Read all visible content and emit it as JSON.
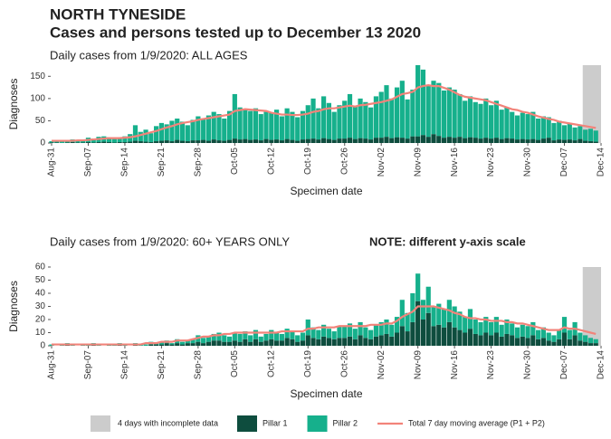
{
  "title": "NORTH TYNESIDE",
  "subtitle": "Cases and persons tested up to December 13 2020",
  "chart_data": [
    {
      "type": "bar",
      "stacked": true,
      "title": "Daily cases from 1/9/2020: ALL AGES",
      "ylabel": "Diagnoses",
      "xlabel": "Specimen date",
      "ylim": [
        0,
        175
      ],
      "yticks": [
        0,
        50,
        100,
        150
      ],
      "shade": {
        "days": 4,
        "color": "#cccccc"
      },
      "categories": [
        "Aug-31",
        null,
        null,
        null,
        null,
        null,
        null,
        "Sep-07",
        null,
        null,
        null,
        null,
        null,
        null,
        "Sep-14",
        null,
        null,
        null,
        null,
        null,
        null,
        "Sep-21",
        null,
        null,
        null,
        null,
        null,
        null,
        "Sep-28",
        null,
        null,
        null,
        null,
        null,
        null,
        "Oct-05",
        null,
        null,
        null,
        null,
        null,
        null,
        "Oct-12",
        null,
        null,
        null,
        null,
        null,
        null,
        "Oct-19",
        null,
        null,
        null,
        null,
        null,
        null,
        "Oct-26",
        null,
        null,
        null,
        null,
        null,
        null,
        "Nov-02",
        null,
        null,
        null,
        null,
        null,
        null,
        "Nov-09",
        null,
        null,
        null,
        null,
        null,
        null,
        "Nov-16",
        null,
        null,
        null,
        null,
        null,
        null,
        "Nov-23",
        null,
        null,
        null,
        null,
        null,
        null,
        "Nov-30",
        null,
        null,
        null,
        null,
        null,
        null,
        "Dec-07",
        null,
        null,
        null,
        null,
        null,
        null,
        "Dec-14"
      ],
      "series": [
        {
          "name": "Pillar 1",
          "color": "#0e4d3e",
          "values": [
            1,
            1,
            0,
            1,
            2,
            1,
            1,
            2,
            1,
            2,
            3,
            2,
            1,
            2,
            2,
            3,
            5,
            4,
            3,
            2,
            4,
            5,
            6,
            4,
            7,
            5,
            4,
            6,
            6,
            7,
            5,
            8,
            6,
            5,
            7,
            10,
            8,
            9,
            7,
            8,
            6,
            9,
            7,
            8,
            6,
            9,
            7,
            5,
            8,
            9,
            10,
            8,
            11,
            9,
            7,
            10,
            10,
            12,
            9,
            11,
            10,
            8,
            12,
            12,
            14,
            11,
            13,
            12,
            10,
            15,
            15,
            18,
            14,
            20,
            16,
            12,
            14,
            12,
            14,
            11,
            13,
            12,
            10,
            12,
            10,
            12,
            9,
            11,
            10,
            8,
            9,
            8,
            9,
            7,
            10,
            12,
            6,
            8,
            7,
            8,
            6,
            9,
            5,
            4,
            3,
            null
          ]
        },
        {
          "name": "Pillar 2",
          "color": "#16b08c",
          "values": [
            3,
            4,
            3,
            5,
            6,
            4,
            5,
            10,
            9,
            12,
            12,
            11,
            8,
            9,
            13,
            17,
            35,
            21,
            27,
            20,
            34,
            40,
            36,
            46,
            48,
            43,
            36,
            46,
            54,
            48,
            57,
            62,
            59,
            50,
            65,
            100,
            72,
            66,
            65,
            70,
            59,
            61,
            61,
            67,
            54,
            69,
            63,
            53,
            64,
            76,
            90,
            70,
            94,
            81,
            63,
            75,
            85,
            98,
            73,
            89,
            82,
            72,
            93,
            103,
            116,
            89,
            112,
            128,
            88,
            105,
            160,
            147,
            116,
            120,
            119,
            106,
            111,
            108,
            96,
            84,
            92,
            80,
            78,
            88,
            75,
            83,
            66,
            69,
            60,
            54,
            59,
            57,
            61,
            48,
            50,
            46,
            39,
            42,
            33,
            37,
            29,
            29,
            25,
            28,
            25,
            null
          ]
        },
        {
          "name": "Total 7 day moving average (P1 + P2)",
          "type": "line",
          "color": "#f2837a",
          "values": [
            5,
            5,
            5,
            5,
            5,
            6,
            6,
            7,
            8,
            9,
            10,
            11,
            11,
            11,
            12,
            13,
            15,
            18,
            21,
            24,
            27,
            31,
            35,
            38,
            42,
            45,
            47,
            49,
            52,
            54,
            56,
            58,
            60,
            62,
            64,
            72,
            74,
            76,
            75,
            74,
            73,
            72,
            68,
            66,
            64,
            64,
            63,
            63,
            64,
            66,
            70,
            72,
            76,
            78,
            78,
            80,
            82,
            84,
            82,
            85,
            86,
            88,
            90,
            92,
            95,
            98,
            104,
            110,
            112,
            115,
            125,
            128,
            130,
            128,
            128,
            124,
            120,
            114,
            108,
            104,
            102,
            100,
            98,
            96,
            92,
            88,
            84,
            80,
            76,
            74,
            70,
            68,
            64,
            60,
            57,
            54,
            52,
            48,
            46,
            44,
            42,
            40,
            38,
            36,
            34,
            null
          ]
        }
      ]
    },
    {
      "type": "bar",
      "stacked": true,
      "title": "Daily cases from 1/9/2020: 60+ YEARS ONLY",
      "note": "NOTE: different y-axis scale",
      "ylabel": "Diagnoses",
      "xlabel": "Specimen date",
      "ylim": [
        0,
        60
      ],
      "yticks": [
        0,
        10,
        20,
        30,
        40,
        50,
        60
      ],
      "shade": {
        "label": "4 days with incomplete data",
        "days": 4,
        "color": "#cccccc"
      },
      "categories": [
        "Aug-31",
        null,
        null,
        null,
        null,
        null,
        null,
        "Sep-07",
        null,
        null,
        null,
        null,
        null,
        null,
        "Sep-14",
        null,
        null,
        null,
        null,
        null,
        null,
        "Sep-21",
        null,
        null,
        null,
        null,
        null,
        null,
        "Sep-28",
        null,
        null,
        null,
        null,
        null,
        null,
        "Oct-05",
        null,
        null,
        null,
        null,
        null,
        null,
        "Oct-12",
        null,
        null,
        null,
        null,
        null,
        null,
        "Oct-19",
        null,
        null,
        null,
        null,
        null,
        null,
        "Oct-26",
        null,
        null,
        null,
        null,
        null,
        null,
        "Nov-02",
        null,
        null,
        null,
        null,
        null,
        null,
        "Nov-09",
        null,
        null,
        null,
        null,
        null,
        null,
        "Nov-16",
        null,
        null,
        null,
        null,
        null,
        null,
        "Nov-23",
        null,
        null,
        null,
        null,
        null,
        null,
        "Nov-30",
        null,
        null,
        null,
        null,
        null,
        null,
        "Dec-07",
        null,
        null,
        null,
        null,
        null,
        null,
        "Dec-14"
      ],
      "series": [
        {
          "name": "Pillar 1",
          "color": "#0e4d3e",
          "values": [
            0,
            0,
            0,
            1,
            0,
            0,
            0,
            0,
            1,
            0,
            0,
            0,
            0,
            1,
            0,
            0,
            1,
            0,
            0,
            1,
            1,
            1,
            2,
            1,
            2,
            1,
            2,
            2,
            3,
            2,
            3,
            4,
            4,
            3,
            3,
            4,
            3,
            5,
            3,
            5,
            3,
            4,
            5,
            4,
            4,
            6,
            5,
            3,
            4,
            8,
            6,
            5,
            7,
            6,
            5,
            6,
            6,
            7,
            5,
            8,
            6,
            5,
            7,
            8,
            9,
            7,
            10,
            15,
            11,
            18,
            34,
            20,
            25,
            15,
            16,
            14,
            18,
            14,
            12,
            10,
            13,
            9,
            8,
            10,
            8,
            10,
            7,
            9,
            8,
            6,
            7,
            6,
            8,
            5,
            6,
            4,
            3,
            5,
            10,
            5,
            8,
            4,
            3,
            2,
            2,
            null
          ]
        },
        {
          "name": "Pillar 2",
          "color": "#16b08c",
          "values": [
            1,
            0,
            1,
            1,
            1,
            0,
            1,
            1,
            1,
            1,
            0,
            1,
            1,
            1,
            1,
            0,
            1,
            1,
            1,
            2,
            1,
            2,
            2,
            1,
            3,
            2,
            2,
            3,
            5,
            4,
            4,
            5,
            6,
            5,
            4,
            6,
            6,
            6,
            5,
            7,
            4,
            5,
            7,
            6,
            5,
            7,
            6,
            5,
            6,
            12,
            8,
            7,
            9,
            7,
            6,
            9,
            9,
            10,
            8,
            10,
            8,
            7,
            9,
            10,
            11,
            9,
            12,
            20,
            14,
            22,
            21,
            15,
            20,
            15,
            16,
            14,
            17,
            16,
            14,
            12,
            15,
            11,
            10,
            12,
            10,
            12,
            9,
            11,
            9,
            8,
            9,
            9,
            10,
            7,
            8,
            6,
            5,
            7,
            12,
            7,
            10,
            6,
            5,
            4,
            3,
            null
          ]
        },
        {
          "name": "Total 7 day moving average (P1 + P2)",
          "type": "line",
          "color": "#f2837a",
          "values": [
            1,
            1,
            1,
            1,
            1,
            1,
            1,
            1,
            1,
            1,
            1,
            1,
            1,
            1,
            1,
            1,
            1,
            1,
            2,
            2,
            2,
            3,
            3,
            3,
            4,
            4,
            4,
            5,
            6,
            7,
            7,
            8,
            8,
            9,
            9,
            10,
            10,
            10,
            10,
            10,
            10,
            10,
            10,
            10,
            11,
            11,
            11,
            11,
            11,
            13,
            13,
            14,
            14,
            14,
            14,
            15,
            15,
            15,
            15,
            15,
            15,
            16,
            16,
            16,
            17,
            17,
            19,
            22,
            24,
            26,
            30,
            30,
            30,
            30,
            29,
            28,
            27,
            25,
            24,
            22,
            21,
            21,
            20,
            20,
            19,
            19,
            19,
            18,
            18,
            17,
            17,
            16,
            15,
            14,
            13,
            12,
            12,
            12,
            14,
            13,
            13,
            12,
            11,
            10,
            9,
            null
          ]
        }
      ]
    }
  ]
}
